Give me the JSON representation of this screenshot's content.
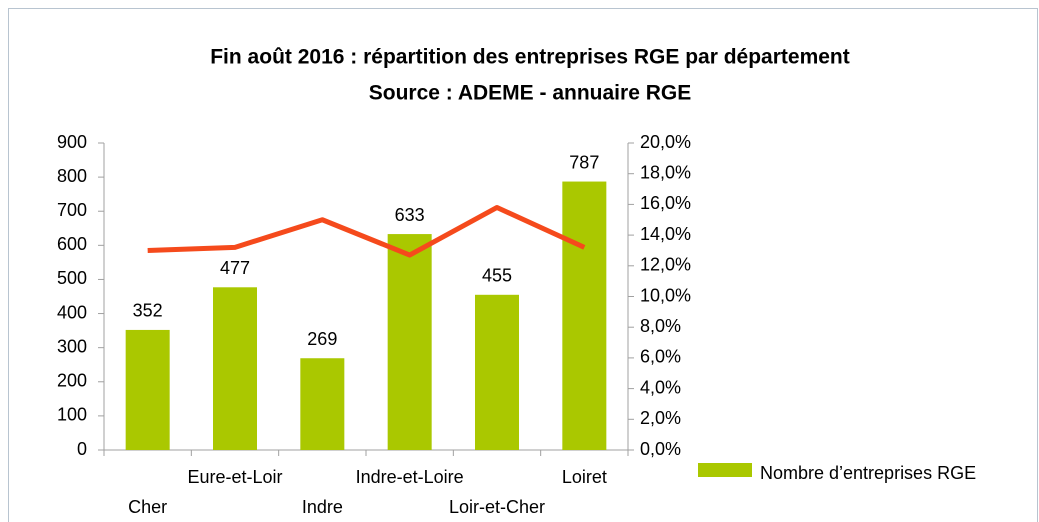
{
  "chart_data": {
    "type": "bar",
    "title": "Fin août 2016 : répartition des entreprises RGE par département",
    "subtitle": "Source : ADEME - annuaire RGE",
    "categories": [
      "Cher",
      "Eure-et-Loir",
      "Indre",
      "Indre-et-Loire",
      "Loir-et-Cher",
      "Loiret"
    ],
    "series": [
      {
        "name": "Nombre d’entreprises RGE",
        "type": "bar",
        "color": "#aac800",
        "values": [
          352,
          477,
          269,
          633,
          455,
          787
        ]
      },
      {
        "type": "line",
        "axis": "y2",
        "color": "#f54a1c",
        "values": [
          13.0,
          13.2,
          15.0,
          12.7,
          15.8,
          13.2
        ]
      }
    ],
    "ylim": [
      0,
      900
    ],
    "yticks": [
      0,
      100,
      200,
      300,
      400,
      500,
      600,
      700,
      800,
      900
    ],
    "y2lim": [
      0,
      20
    ],
    "y2ticks": [
      {
        "value": 0,
        "label": "0,0%"
      },
      {
        "value": 2,
        "label": "2,0%"
      },
      {
        "value": 4,
        "label": "4,0%"
      },
      {
        "value": 6,
        "label": "6,0%"
      },
      {
        "value": 8,
        "label": "8,0%"
      },
      {
        "value": 10,
        "label": "10,0%"
      },
      {
        "value": 12,
        "label": "12,0%"
      },
      {
        "value": 14,
        "label": "14,0%"
      },
      {
        "value": 16,
        "label": "16,0%"
      },
      {
        "value": 18,
        "label": "18,0%"
      },
      {
        "value": 20,
        "label": "20,0%"
      }
    ],
    "grid": false,
    "legend": "bottom-right"
  }
}
